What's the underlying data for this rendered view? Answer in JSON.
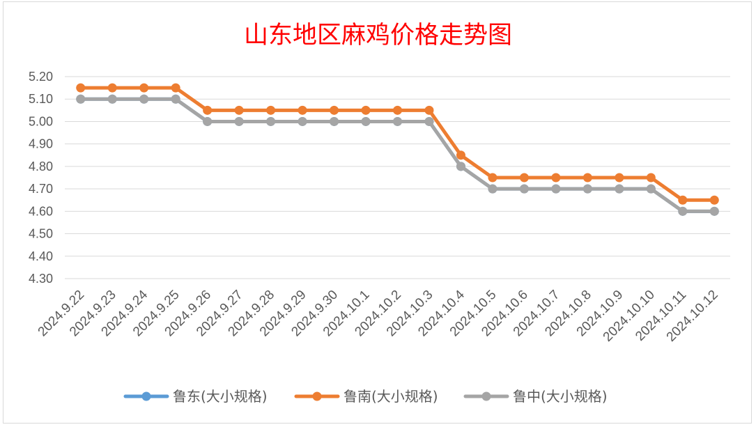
{
  "chart_data": {
    "type": "line",
    "title": "山东地区麻鸡价格走势图",
    "xlabel": "",
    "ylabel": "",
    "ylim": [
      4.3,
      5.2
    ],
    "yticks": [
      "5.20",
      "5.10",
      "5.00",
      "4.90",
      "4.80",
      "4.70",
      "4.60",
      "4.50",
      "4.40",
      "4.30"
    ],
    "categories": [
      "2024.9.22",
      "2024.9.23",
      "2024.9.24",
      "2024.9.25",
      "2024.9.26",
      "2024.9.27",
      "2024.9.28",
      "2024.9.29",
      "2024.9.30",
      "2024.10.1",
      "2024.10.2",
      "2024.10.3",
      "2024.10.4",
      "2024.10.5",
      "2024.10.6",
      "2024.10.7",
      "2024.10.8",
      "2024.10.9",
      "2024.10.10",
      "2024.10.11",
      "2024.10.12"
    ],
    "series": [
      {
        "name": "鲁东(大小规格)",
        "color": "#5b9bd5",
        "values": [
          5.1,
          5.1,
          5.1,
          5.1,
          5.0,
          5.0,
          5.0,
          5.0,
          5.0,
          5.0,
          5.0,
          5.0,
          4.8,
          4.7,
          4.7,
          4.7,
          4.7,
          4.7,
          4.7,
          4.6,
          4.6
        ]
      },
      {
        "name": "鲁南(大小规格)",
        "color": "#ed7d31",
        "values": [
          5.15,
          5.15,
          5.15,
          5.15,
          5.05,
          5.05,
          5.05,
          5.05,
          5.05,
          5.05,
          5.05,
          5.05,
          4.85,
          4.75,
          4.75,
          4.75,
          4.75,
          4.75,
          4.75,
          4.65,
          4.65
        ]
      },
      {
        "name": "鲁中(大小规格)",
        "color": "#a5a5a5",
        "values": [
          5.1,
          5.1,
          5.1,
          5.1,
          5.0,
          5.0,
          5.0,
          5.0,
          5.0,
          5.0,
          5.0,
          5.0,
          4.8,
          4.7,
          4.7,
          4.7,
          4.7,
          4.7,
          4.7,
          4.6,
          4.6
        ]
      }
    ],
    "grid": true,
    "legend": "bottom"
  }
}
